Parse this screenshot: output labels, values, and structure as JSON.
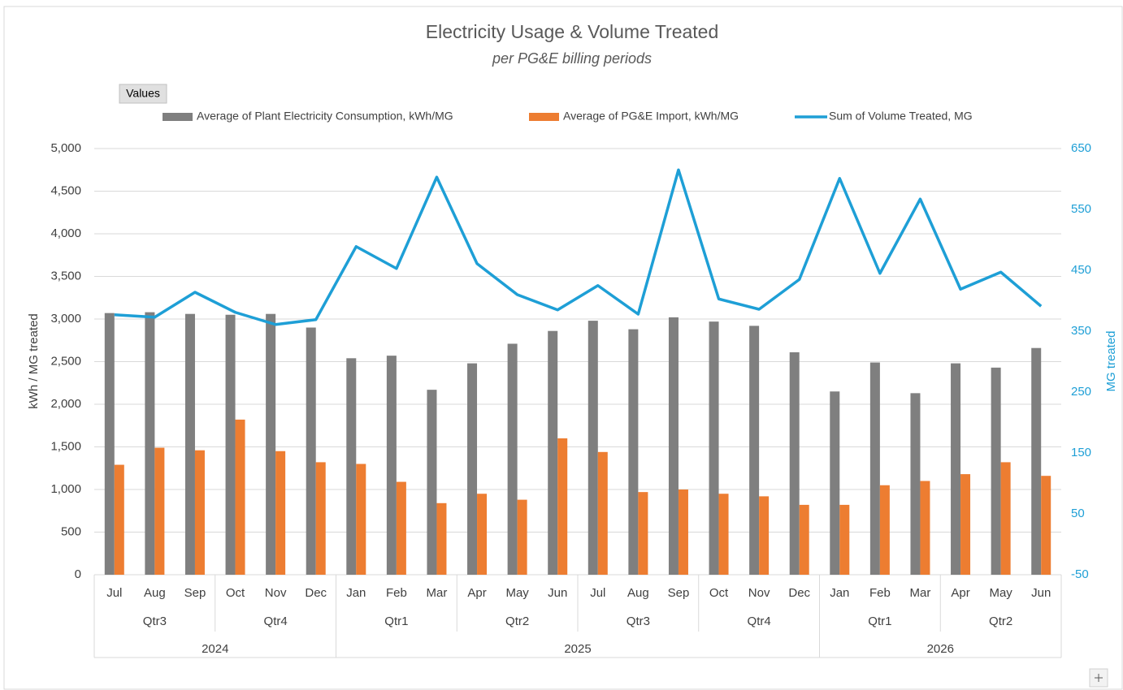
{
  "chart_data": {
    "type": "bar",
    "title": "Electricity Usage & Volume Treated",
    "subtitle": "per PG&E billing periods",
    "field_button": "Values",
    "ylabel": "kWh / MG treated",
    "y2label": "MG treated",
    "categories": [
      "Jul",
      "Aug",
      "Sep",
      "Oct",
      "Nov",
      "Dec",
      "Jan",
      "Feb",
      "Mar",
      "Apr",
      "May",
      "Jun",
      "Jul",
      "Aug",
      "Sep",
      "Oct",
      "Nov",
      "Dec",
      "Jan",
      "Feb",
      "Mar",
      "Apr",
      "May",
      "Jun"
    ],
    "years": [
      {
        "label": "2024",
        "quarters": [
          "Qtr3",
          "Qtr4"
        ]
      },
      {
        "label": "2025",
        "quarters": [
          "Qtr1",
          "Qtr2",
          "Qtr3",
          "Qtr4"
        ]
      },
      {
        "label": "2026",
        "quarters": [
          "Qtr1",
          "Qtr2"
        ]
      }
    ],
    "series": [
      {
        "name": "Average of Plant Electricity Consumption, kWh/MG",
        "color": "#7f7f7f",
        "type": "bar",
        "values": [
          3070,
          3080,
          3060,
          3050,
          3060,
          2900,
          2540,
          2570,
          2170,
          2480,
          2710,
          2860,
          2980,
          2880,
          3020,
          2970,
          2920,
          2610,
          2150,
          2490,
          2130,
          2480,
          2430,
          2660
        ]
      },
      {
        "name": "Average of PG&E Import, kWh/MG",
        "color": "#ed7d31",
        "type": "bar",
        "values": [
          1290,
          1490,
          1460,
          1820,
          1450,
          1320,
          1300,
          1090,
          840,
          950,
          880,
          1600,
          1440,
          970,
          1000,
          950,
          920,
          820,
          820,
          1050,
          1100,
          1180,
          1320,
          1160
        ]
      },
      {
        "name": "Sum of Volume Treated, MG",
        "color": "#1e9fd6",
        "type": "line",
        "axis": "y2",
        "values": [
          377,
          373,
          414,
          381,
          361,
          369,
          489,
          453,
          603,
          461,
          410,
          385,
          425,
          378,
          615,
          403,
          386,
          435,
          601,
          445,
          567,
          419,
          447,
          391
        ]
      }
    ],
    "ylim": [
      0,
      5000
    ],
    "yticks": [
      0,
      500,
      {
        "value": 1000,
        "label": "1,000"
      },
      {
        "value": 1500,
        "label": "1,500"
      },
      {
        "value": 2000,
        "label": "2,000"
      },
      {
        "value": 2500,
        "label": "2,500"
      },
      {
        "value": 3000,
        "label": "3,000"
      },
      {
        "value": 3500,
        "label": "3,500"
      },
      {
        "value": 4000,
        "label": "4,000"
      },
      {
        "value": 4500,
        "label": "4,500"
      },
      {
        "value": 5000,
        "label": "5,000"
      }
    ],
    "y2lim": [
      -50,
      650
    ],
    "y2ticks": [
      -50,
      50,
      150,
      250,
      350,
      450,
      550,
      650
    ],
    "y2color": "#1e9fd6",
    "grid": true,
    "legend": "top"
  }
}
